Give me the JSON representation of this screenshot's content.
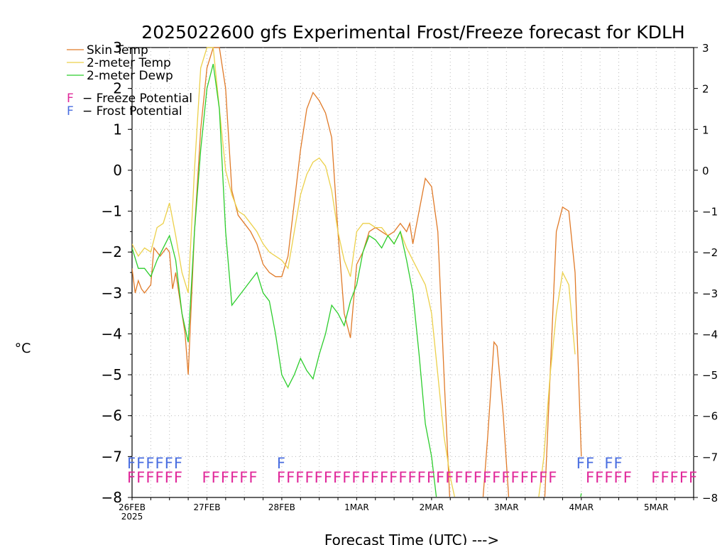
{
  "chart_data": {
    "type": "line",
    "title": "2025022600 gfs Experimental Frost/Freeze forecast for KDLH",
    "xlabel": "Forecast Time (UTC) --->",
    "ylabel": "°C",
    "ylim": [
      -8,
      3
    ],
    "yticks": [
      -8,
      -7,
      -6,
      -5,
      -4,
      -3,
      -2,
      -1,
      0,
      1,
      2,
      3
    ],
    "xlim": [
      "2025-02-26 00Z",
      "2025-03-05 12Z"
    ],
    "xticks": [
      {
        "label": "26FEB",
        "sub": "2025",
        "x": "2025-02-26 00Z"
      },
      {
        "label": "27FEB",
        "x": "2025-02-27 00Z"
      },
      {
        "label": "28FEB",
        "x": "2025-02-28 00Z"
      },
      {
        "label": "1MAR",
        "x": "2025-03-01 00Z"
      },
      {
        "label": "2MAR",
        "x": "2025-03-02 00Z"
      },
      {
        "label": "3MAR",
        "x": "2025-03-03 00Z"
      },
      {
        "label": "4MAR",
        "x": "2025-03-04 00Z"
      },
      {
        "label": "5MAR",
        "x": "2025-03-05 00Z"
      }
    ],
    "grid": true,
    "legend_position": "top-left",
    "series": [
      {
        "name": "Skin Temp",
        "color": "#e07a28",
        "points": [
          [
            "2025-02-26 00Z",
            -2.4
          ],
          [
            "2025-02-26 01Z",
            -3.0
          ],
          [
            "2025-02-26 02Z",
            -2.7
          ],
          [
            "2025-02-26 03Z",
            -2.9
          ],
          [
            "2025-02-26 04Z",
            -3.0
          ],
          [
            "2025-02-26 06Z",
            -2.8
          ],
          [
            "2025-02-26 07Z",
            -1.9
          ],
          [
            "2025-02-26 09Z",
            -2.1
          ],
          [
            "2025-02-26 10Z",
            -2.0
          ],
          [
            "2025-02-26 11Z",
            -1.9
          ],
          [
            "2025-02-26 12Z",
            -2.0
          ],
          [
            "2025-02-26 13Z",
            -2.9
          ],
          [
            "2025-02-26 14Z",
            -2.5
          ],
          [
            "2025-02-26 15Z",
            -3.0
          ],
          [
            "2025-02-26 17Z",
            -4.0
          ],
          [
            "2025-02-26 18Z",
            -5.0
          ],
          [
            "2025-02-26 20Z",
            -1.5
          ],
          [
            "2025-02-26 22Z",
            1.0
          ],
          [
            "2025-02-27 00Z",
            2.5
          ],
          [
            "2025-02-27 02Z",
            3.0
          ],
          [
            "2025-02-27 04Z",
            3.0
          ],
          [
            "2025-02-27 06Z",
            2.0
          ],
          [
            "2025-02-27 08Z",
            -0.5
          ],
          [
            "2025-02-27 10Z",
            -1.1
          ],
          [
            "2025-02-27 12Z",
            -1.3
          ],
          [
            "2025-02-27 14Z",
            -1.5
          ],
          [
            "2025-02-27 16Z",
            -1.8
          ],
          [
            "2025-02-27 18Z",
            -2.3
          ],
          [
            "2025-02-27 20Z",
            -2.5
          ],
          [
            "2025-02-27 22Z",
            -2.6
          ],
          [
            "2025-02-28 00Z",
            -2.6
          ],
          [
            "2025-02-28 02Z",
            -2.1
          ],
          [
            "2025-02-28 04Z",
            -0.8
          ],
          [
            "2025-02-28 06Z",
            0.5
          ],
          [
            "2025-02-28 08Z",
            1.5
          ],
          [
            "2025-02-28 10Z",
            1.9
          ],
          [
            "2025-02-28 12Z",
            1.7
          ],
          [
            "2025-02-28 14Z",
            1.4
          ],
          [
            "2025-02-28 16Z",
            0.8
          ],
          [
            "2025-02-28 18Z",
            -1.5
          ],
          [
            "2025-02-28 20Z",
            -3.5
          ],
          [
            "2025-02-28 22Z",
            -4.1
          ],
          [
            "2025-03-01 00Z",
            -2.3
          ],
          [
            "2025-03-01 02Z",
            -2.0
          ],
          [
            "2025-03-01 04Z",
            -1.5
          ],
          [
            "2025-03-01 06Z",
            -1.4
          ],
          [
            "2025-03-01 08Z",
            -1.5
          ],
          [
            "2025-03-01 10Z",
            -1.6
          ],
          [
            "2025-03-01 12Z",
            -1.5
          ],
          [
            "2025-03-01 14Z",
            -1.3
          ],
          [
            "2025-03-01 16Z",
            -1.5
          ],
          [
            "2025-03-01 17Z",
            -1.3
          ],
          [
            "2025-03-01 18Z",
            -1.8
          ],
          [
            "2025-03-01 20Z",
            -1.0
          ],
          [
            "2025-03-01 22Z",
            -0.2
          ],
          [
            "2025-03-02 00Z",
            -0.4
          ],
          [
            "2025-03-02 02Z",
            -1.5
          ],
          [
            "2025-03-02 04Z",
            -5.0
          ],
          [
            "2025-03-02 06Z",
            -8.3
          ],
          [
            "2025-03-02 16Z",
            -8.5
          ],
          [
            "2025-03-02 18Z",
            -6.5
          ],
          [
            "2025-03-02 20Z",
            -4.2
          ],
          [
            "2025-03-02 21Z",
            -4.3
          ],
          [
            "2025-03-02 23Z",
            -6.0
          ],
          [
            "2025-03-03 01Z",
            -8.3
          ],
          [
            "2025-03-03 12Z",
            -8.5
          ],
          [
            "2025-03-03 14Z",
            -5.0
          ],
          [
            "2025-03-03 16Z",
            -1.5
          ],
          [
            "2025-03-03 18Z",
            -0.9
          ],
          [
            "2025-03-03 20Z",
            -1.0
          ],
          [
            "2025-03-03 22Z",
            -2.5
          ],
          [
            "2025-03-04 00Z",
            -7.0
          ]
        ]
      },
      {
        "name": "2-meter Temp",
        "color": "#ecd04a",
        "points": [
          [
            "2025-02-26 00Z",
            -1.8
          ],
          [
            "2025-02-26 02Z",
            -2.1
          ],
          [
            "2025-02-26 04Z",
            -1.9
          ],
          [
            "2025-02-26 06Z",
            -2.0
          ],
          [
            "2025-02-26 08Z",
            -1.4
          ],
          [
            "2025-02-26 10Z",
            -1.3
          ],
          [
            "2025-02-26 12Z",
            -0.8
          ],
          [
            "2025-02-26 14Z",
            -1.6
          ],
          [
            "2025-02-26 16Z",
            -2.5
          ],
          [
            "2025-02-26 18Z",
            -3.0
          ],
          [
            "2025-02-26 20Z",
            0.0
          ],
          [
            "2025-02-26 22Z",
            2.5
          ],
          [
            "2025-02-27 00Z",
            3.0
          ],
          [
            "2025-02-27 02Z",
            3.0
          ],
          [
            "2025-02-27 04Z",
            1.5
          ],
          [
            "2025-02-27 06Z",
            0.0
          ],
          [
            "2025-02-27 08Z",
            -0.6
          ],
          [
            "2025-02-27 10Z",
            -1.0
          ],
          [
            "2025-02-27 12Z",
            -1.1
          ],
          [
            "2025-02-27 14Z",
            -1.3
          ],
          [
            "2025-02-27 16Z",
            -1.5
          ],
          [
            "2025-02-27 18Z",
            -1.8
          ],
          [
            "2025-02-27 20Z",
            -2.0
          ],
          [
            "2025-02-27 22Z",
            -2.1
          ],
          [
            "2025-02-28 00Z",
            -2.2
          ],
          [
            "2025-02-28 02Z",
            -2.4
          ],
          [
            "2025-02-28 04Z",
            -1.5
          ],
          [
            "2025-02-28 06Z",
            -0.6
          ],
          [
            "2025-02-28 08Z",
            -0.1
          ],
          [
            "2025-02-28 10Z",
            0.2
          ],
          [
            "2025-02-28 12Z",
            0.3
          ],
          [
            "2025-02-28 14Z",
            0.1
          ],
          [
            "2025-02-28 16Z",
            -0.5
          ],
          [
            "2025-02-28 18Z",
            -1.5
          ],
          [
            "2025-02-28 20Z",
            -2.2
          ],
          [
            "2025-02-28 22Z",
            -2.6
          ],
          [
            "2025-03-01 00Z",
            -1.5
          ],
          [
            "2025-03-01 02Z",
            -1.3
          ],
          [
            "2025-03-01 04Z",
            -1.3
          ],
          [
            "2025-03-01 06Z",
            -1.4
          ],
          [
            "2025-03-01 08Z",
            -1.4
          ],
          [
            "2025-03-01 10Z",
            -1.6
          ],
          [
            "2025-03-01 12Z",
            -1.8
          ],
          [
            "2025-03-01 14Z",
            -1.5
          ],
          [
            "2025-03-01 16Z",
            -1.9
          ],
          [
            "2025-03-01 18Z",
            -2.2
          ],
          [
            "2025-03-01 20Z",
            -2.5
          ],
          [
            "2025-03-01 22Z",
            -2.8
          ],
          [
            "2025-03-02 00Z",
            -3.5
          ],
          [
            "2025-03-02 02Z",
            -5.0
          ],
          [
            "2025-03-02 04Z",
            -6.5
          ],
          [
            "2025-03-02 06Z",
            -7.5
          ],
          [
            "2025-03-02 08Z",
            -8.2
          ],
          [
            "2025-03-03 10Z",
            -8.2
          ],
          [
            "2025-03-03 12Z",
            -7.0
          ],
          [
            "2025-03-03 14Z",
            -5.0
          ],
          [
            "2025-03-03 16Z",
            -3.5
          ],
          [
            "2025-03-03 18Z",
            -2.5
          ],
          [
            "2025-03-03 20Z",
            -2.8
          ],
          [
            "2025-03-03 22Z",
            -4.5
          ]
        ]
      },
      {
        "name": "2-meter Dewp",
        "color": "#2ccd2c",
        "points": [
          [
            "2025-02-26 00Z",
            -1.9
          ],
          [
            "2025-02-26 02Z",
            -2.4
          ],
          [
            "2025-02-26 04Z",
            -2.4
          ],
          [
            "2025-02-26 06Z",
            -2.6
          ],
          [
            "2025-02-26 08Z",
            -2.2
          ],
          [
            "2025-02-26 10Z",
            -1.9
          ],
          [
            "2025-02-26 12Z",
            -1.6
          ],
          [
            "2025-02-26 14Z",
            -2.2
          ],
          [
            "2025-02-26 16Z",
            -3.5
          ],
          [
            "2025-02-26 18Z",
            -4.2
          ],
          [
            "2025-02-26 20Z",
            -1.5
          ],
          [
            "2025-02-26 22Z",
            0.5
          ],
          [
            "2025-02-27 00Z",
            2.0
          ],
          [
            "2025-02-27 02Z",
            2.6
          ],
          [
            "2025-02-27 04Z",
            1.5
          ],
          [
            "2025-02-27 06Z",
            -1.5
          ],
          [
            "2025-02-27 08Z",
            -3.3
          ],
          [
            "2025-02-27 10Z",
            -3.1
          ],
          [
            "2025-02-27 12Z",
            -2.9
          ],
          [
            "2025-02-27 14Z",
            -2.7
          ],
          [
            "2025-02-27 16Z",
            -2.5
          ],
          [
            "2025-02-27 18Z",
            -3.0
          ],
          [
            "2025-02-27 20Z",
            -3.2
          ],
          [
            "2025-02-27 22Z",
            -4.0
          ],
          [
            "2025-02-28 00Z",
            -5.0
          ],
          [
            "2025-02-28 02Z",
            -5.3
          ],
          [
            "2025-02-28 04Z",
            -5.0
          ],
          [
            "2025-02-28 06Z",
            -4.6
          ],
          [
            "2025-02-28 08Z",
            -4.9
          ],
          [
            "2025-02-28 10Z",
            -5.1
          ],
          [
            "2025-02-28 12Z",
            -4.5
          ],
          [
            "2025-02-28 14Z",
            -4.0
          ],
          [
            "2025-02-28 16Z",
            -3.3
          ],
          [
            "2025-02-28 18Z",
            -3.5
          ],
          [
            "2025-02-28 20Z",
            -3.8
          ],
          [
            "2025-02-28 22Z",
            -3.2
          ],
          [
            "2025-03-01 00Z",
            -2.8
          ],
          [
            "2025-03-01 02Z",
            -2.0
          ],
          [
            "2025-03-01 04Z",
            -1.6
          ],
          [
            "2025-03-01 06Z",
            -1.7
          ],
          [
            "2025-03-01 08Z",
            -1.9
          ],
          [
            "2025-03-01 10Z",
            -1.6
          ],
          [
            "2025-03-01 12Z",
            -1.8
          ],
          [
            "2025-03-01 14Z",
            -1.5
          ],
          [
            "2025-03-01 16Z",
            -2.2
          ],
          [
            "2025-03-01 18Z",
            -3.0
          ],
          [
            "2025-03-01 20Z",
            -4.5
          ],
          [
            "2025-03-01 22Z",
            -6.2
          ],
          [
            "2025-03-02 00Z",
            -7.0
          ],
          [
            "2025-03-02 02Z",
            -8.3
          ],
          [
            "2025-03-03 23Z",
            -8.3
          ],
          [
            "2025-03-04 00Z",
            -7.9
          ]
        ]
      }
    ],
    "frost_freeze": {
      "legend": [
        {
          "label": "F - Freeze Potential",
          "color": "#e0289a"
        },
        {
          "label": "F - Frost Potential",
          "color": "#4a6ee0"
        }
      ],
      "freeze_label": "F",
      "freeze_color": "#e0289a",
      "freeze_level": -7.5,
      "freeze_runs": [
        [
          "2025-02-26 00Z",
          "2025-02-26 15Z"
        ],
        [
          "2025-02-27 00Z",
          "2025-02-27 15Z"
        ],
        [
          "2025-02-28 00Z",
          "2025-03-03 15Z"
        ],
        [
          "2025-03-04 03Z",
          "2025-03-04 15Z"
        ],
        [
          "2025-03-05 00Z",
          "2025-03-05 12Z"
        ]
      ],
      "frost_label": "F",
      "frost_color": "#4a6ee0",
      "frost_level": -7.15,
      "frost_runs": [
        [
          "2025-02-26 00Z",
          "2025-02-26 15Z"
        ],
        [
          "2025-02-28 00Z",
          "2025-02-28 00Z"
        ],
        [
          "2025-03-04 00Z",
          "2025-03-04 03Z"
        ],
        [
          "2025-03-04 09Z",
          "2025-03-04 12Z"
        ]
      ]
    }
  }
}
